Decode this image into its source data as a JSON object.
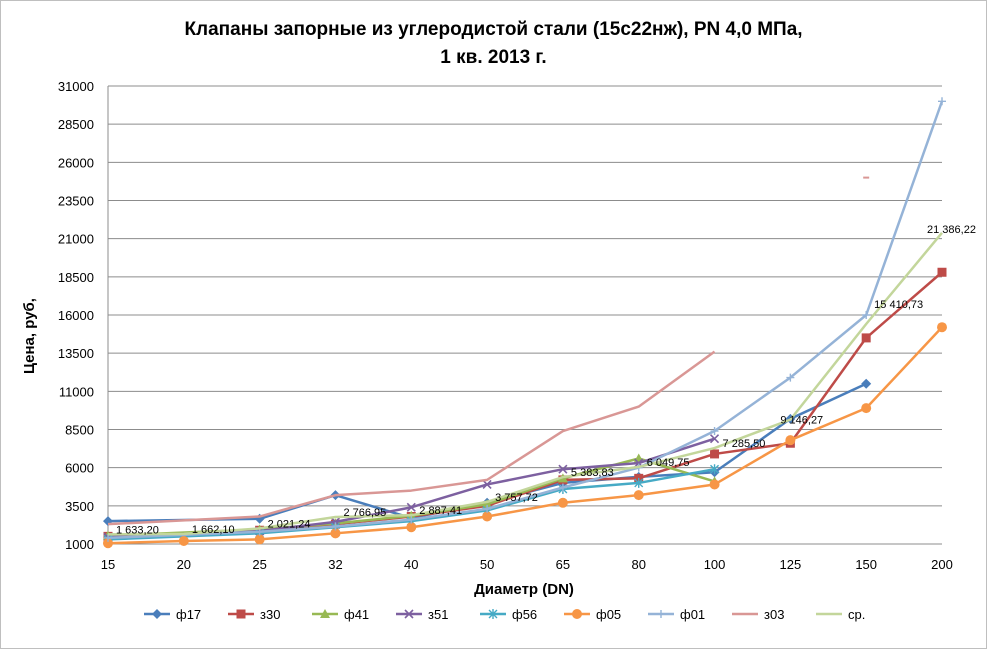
{
  "chart_data": {
    "type": "line",
    "title_line1": "Клапаны запорные из углеродистой стали (15с22нж), PN 4,0 МПа,",
    "title_line2": "1 кв. 2013 г.",
    "xlabel": "Диаметр (DN)",
    "ylabel": "Цена, руб,",
    "categories": [
      "15",
      "20",
      "25",
      "32",
      "40",
      "50",
      "65",
      "80",
      "100",
      "125",
      "150",
      "200"
    ],
    "yticks": [
      "1000",
      "3500",
      "6000",
      "8500",
      "11000",
      "13500",
      "16000",
      "18500",
      "21000",
      "23500",
      "26000",
      "28500",
      "31000"
    ],
    "ylim": [
      1000,
      31000
    ],
    "grid": true,
    "legend_position": "bottom",
    "series": [
      {
        "name": "ф17",
        "color": "#4a7ebb",
        "marker": "diamond",
        "values": [
          2500,
          null,
          2650,
          4200,
          2700,
          3700,
          5000,
          5400,
          5700,
          9200,
          11500,
          null
        ]
      },
      {
        "name": "з30",
        "color": "#be4b48",
        "marker": "square",
        "values": [
          1500,
          null,
          1900,
          2300,
          2800,
          3500,
          5200,
          5300,
          6900,
          7600,
          14500,
          18800
        ]
      },
      {
        "name": "ф41",
        "color": "#98b954",
        "marker": "triangle",
        "values": [
          1550,
          null,
          1950,
          2350,
          2850,
          3600,
          5300,
          6600,
          5100,
          null,
          null,
          null
        ]
      },
      {
        "name": "з51",
        "color": "#7d60a0",
        "marker": "x",
        "values": [
          1450,
          null,
          1850,
          2450,
          3400,
          4900,
          5900,
          6300,
          7900,
          null,
          null,
          null
        ]
      },
      {
        "name": "ф56",
        "color": "#46aac5",
        "marker": "asterisk",
        "values": [
          1300,
          null,
          1700,
          2100,
          2500,
          3200,
          4600,
          5000,
          5900,
          null,
          null,
          null
        ]
      },
      {
        "name": "ф05",
        "color": "#f79646",
        "marker": "circle",
        "values": [
          1050,
          1200,
          1300,
          1700,
          2100,
          2800,
          3700,
          4200,
          4900,
          7800,
          9900,
          15200
        ]
      },
      {
        "name": "ф01",
        "color": "#95b3d7",
        "marker": "plus",
        "values": [
          1400,
          null,
          1800,
          2150,
          2600,
          3300,
          4700,
          6000,
          8400,
          11900,
          16000,
          30000
        ]
      },
      {
        "name": "з03",
        "color": "#d99795",
        "marker": "dash",
        "values": [
          2300,
          null,
          2800,
          4200,
          4500,
          5200,
          8400,
          10000,
          13600,
          null,
          25000,
          null
        ]
      },
      {
        "name": "ср.",
        "color": "#c3d69b",
        "marker": "none",
        "values": [
          1633.2,
          1662.1,
          2021.24,
          2766.95,
          2887.41,
          3757.72,
          5383.83,
          6049.75,
          7285.5,
          9146.27,
          15410.73,
          21386.22
        ]
      }
    ],
    "data_labels": [
      {
        "category": "15",
        "value": 1633.2,
        "text": "1 633,20"
      },
      {
        "category": "20",
        "value": 1662.1,
        "text": "1 662,10"
      },
      {
        "category": "25",
        "value": 2021.24,
        "text": "2 021,24"
      },
      {
        "category": "32",
        "value": 2766.95,
        "text": "2 766,95"
      },
      {
        "category": "40",
        "value": 2887.41,
        "text": "2 887,41"
      },
      {
        "category": "50",
        "value": 3757.72,
        "text": "3 757,72"
      },
      {
        "category": "65",
        "value": 5383.83,
        "text": "5 383,83"
      },
      {
        "category": "80",
        "value": 6049.75,
        "text": "6 049,75"
      },
      {
        "category": "100",
        "value": 7285.5,
        "text": "7 285,50"
      },
      {
        "category": "125",
        "value": 9146.27,
        "text": "9 146,27"
      },
      {
        "category": "150",
        "value": 15410.73,
        "text": "15 410,73"
      },
      {
        "category": "200",
        "value": 21386.22,
        "text": "21 386,22"
      }
    ]
  }
}
